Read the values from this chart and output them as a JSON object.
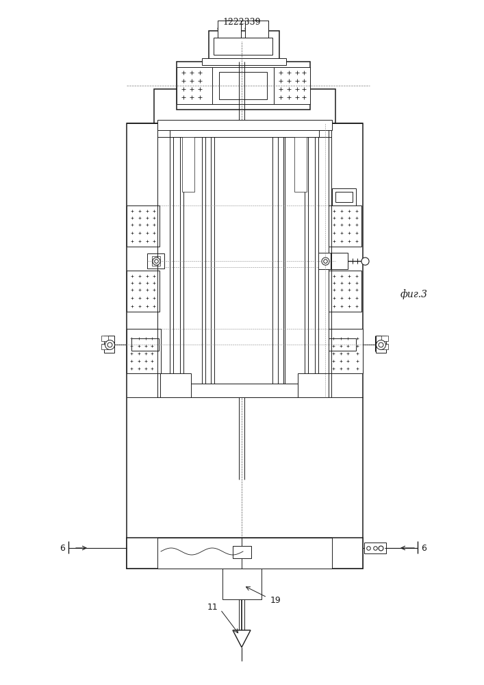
{
  "title": "1222339",
  "fig_label": "фиг.3",
  "label_6": "6",
  "label_11": "11",
  "label_19": "19",
  "bg_color": "#ffffff",
  "lc": "#1a1a1a",
  "lw": 0.7,
  "tlw": 1.1
}
